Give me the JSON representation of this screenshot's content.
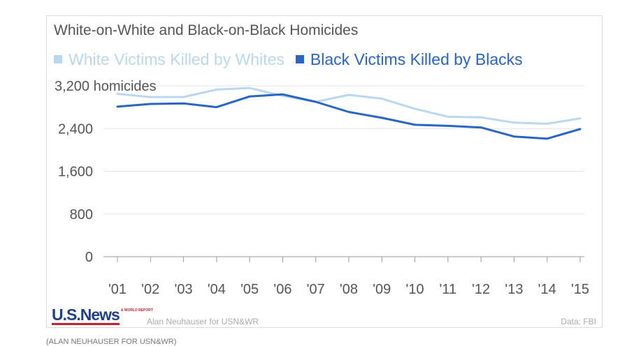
{
  "header": {
    "title": "White-on-White and Black-on-Black Homicides"
  },
  "legend": [
    {
      "label": "White Victims Killed by Whites",
      "color": "#b9d7ef"
    },
    {
      "label": "Black Victims Killed by Blacks",
      "color": "#2965c4"
    }
  ],
  "chart_data": {
    "type": "line",
    "title": "White-on-White and Black-on-Black Homicides",
    "x": [
      "'01",
      "'02",
      "'03",
      "'04",
      "'05",
      "'06",
      "'07",
      "'08",
      "'09",
      "'10",
      "'11",
      "'12",
      "'13",
      "'14",
      "'15"
    ],
    "series": [
      {
        "name": "White Victims Killed by Whites",
        "color": "#b9d7ef",
        "values": [
          3050,
          2990,
          2990,
          3130,
          3160,
          3010,
          2900,
          3030,
          2960,
          2770,
          2620,
          2610,
          2510,
          2490,
          2590
        ]
      },
      {
        "name": "Black Victims Killed by Blacks",
        "color": "#2965c4",
        "values": [
          2810,
          2860,
          2870,
          2800,
          3000,
          3040,
          2900,
          2710,
          2600,
          2470,
          2450,
          2420,
          2250,
          2210,
          2390
        ]
      }
    ],
    "yticks": [
      0,
      800,
      1600,
      2400,
      3200
    ],
    "ytick_labels": [
      "0",
      "800",
      "1,600",
      "2,400",
      "3,200 homicides"
    ],
    "ylim": [
      0,
      3200
    ],
    "grid": true
  },
  "footer": {
    "logo": "U.S.News",
    "logo_tag": "& WORLD REPORT",
    "credit": "Alan Neuhauser for USN&WR",
    "source": "Data: FBI"
  },
  "caption": "(ALAN NEUHAUSER FOR USN&WR)"
}
